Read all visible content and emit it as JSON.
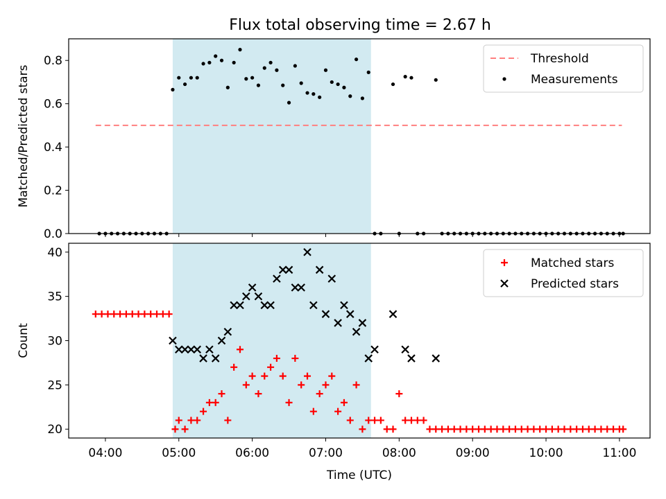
{
  "title": "Flux total observing time = 2.67 h",
  "colors": {
    "highlight": "#add8e6",
    "threshold": "#ff7f7f",
    "measurement": "#000000",
    "matched": "#ff0000",
    "predicted": "#000000"
  },
  "chart_data": [
    {
      "type": "scatter",
      "xlabel": "",
      "ylabel": "Matched/Predicted stars",
      "xlim": [
        "03:30",
        "11:25"
      ],
      "ylim": [
        0,
        0.9
      ],
      "yticks": [
        "0.0",
        "0.2",
        "0.4",
        "0.6",
        "0.8"
      ],
      "ytick_values": [
        0,
        0.2,
        0.4,
        0.6,
        0.8
      ],
      "xticks": [
        "04:00",
        "05:00",
        "06:00",
        "07:00",
        "08:00",
        "09:00",
        "10:00",
        "11:00"
      ],
      "highlight_span": [
        "04:55",
        "07:37"
      ],
      "legend_position": "top-right",
      "series": [
        {
          "name": "Threshold",
          "style": "dashed-line",
          "x": [
            "03:52",
            "11:02"
          ],
          "y": [
            0.5,
            0.5
          ]
        },
        {
          "name": "Measurements",
          "style": "dot",
          "x": [
            "03:55",
            "04:00",
            "04:05",
            "04:10",
            "04:15",
            "04:20",
            "04:25",
            "04:30",
            "04:35",
            "04:40",
            "04:45",
            "04:50",
            "04:55",
            "05:00",
            "05:05",
            "05:10",
            "05:15",
            "05:20",
            "05:25",
            "05:30",
            "05:35",
            "05:40",
            "05:45",
            "05:50",
            "05:55",
            "06:00",
            "06:05",
            "06:10",
            "06:15",
            "06:20",
            "06:25",
            "06:30",
            "06:35",
            "06:40",
            "06:45",
            "06:50",
            "06:55",
            "07:00",
            "07:05",
            "07:10",
            "07:15",
            "07:20",
            "07:25",
            "07:30",
            "07:35",
            "07:40",
            "07:45",
            "07:55",
            "08:00",
            "08:05",
            "08:10",
            "08:15",
            "08:20",
            "08:30",
            "08:35",
            "08:40",
            "08:45",
            "08:50",
            "08:55",
            "09:00",
            "09:05",
            "09:10",
            "09:15",
            "09:20",
            "09:25",
            "09:30",
            "09:35",
            "09:40",
            "09:45",
            "09:50",
            "09:55",
            "10:00",
            "10:05",
            "10:10",
            "10:15",
            "10:20",
            "10:25",
            "10:30",
            "10:35",
            "10:40",
            "10:45",
            "10:50",
            "10:55",
            "11:00",
            "11:03"
          ],
          "y": [
            0,
            0,
            0,
            0,
            0,
            0,
            0,
            0,
            0,
            0,
            0,
            0,
            0.665,
            0.72,
            0.69,
            0.72,
            0.72,
            0.785,
            0.79,
            0.82,
            0.8,
            0.675,
            0.79,
            0.85,
            0.715,
            0.72,
            0.685,
            0.765,
            0.79,
            0.755,
            0.685,
            0.605,
            0.775,
            0.695,
            0.65,
            0.645,
            0.63,
            0.755,
            0.7,
            0.69,
            0.675,
            0.635,
            0.805,
            0.625,
            0.745,
            0,
            0,
            0.69,
            0,
            0.725,
            0.72,
            0,
            0,
            0.71,
            0,
            0,
            0,
            0,
            0,
            0,
            0,
            0,
            0,
            0,
            0,
            0,
            0,
            0,
            0,
            0,
            0,
            0,
            0,
            0,
            0,
            0,
            0,
            0,
            0,
            0,
            0,
            0,
            0,
            0,
            0
          ]
        }
      ]
    },
    {
      "type": "scatter",
      "xlabel": "Time (UTC)",
      "ylabel": "Count",
      "xlim": [
        "03:30",
        "11:25"
      ],
      "ylim": [
        19,
        41
      ],
      "yticks": [
        "20",
        "25",
        "30",
        "35",
        "40"
      ],
      "ytick_values": [
        20,
        25,
        30,
        35,
        40
      ],
      "xticks": [
        "04:00",
        "05:00",
        "06:00",
        "07:00",
        "08:00",
        "09:00",
        "10:00",
        "11:00"
      ],
      "highlight_span": [
        "04:55",
        "07:37"
      ],
      "legend_position": "top-right",
      "series": [
        {
          "name": "Matched stars",
          "style": "plus",
          "x": [
            "03:52",
            "03:57",
            "04:02",
            "04:07",
            "04:12",
            "04:17",
            "04:22",
            "04:27",
            "04:32",
            "04:37",
            "04:42",
            "04:47",
            "04:52",
            "04:57",
            "05:00",
            "05:05",
            "05:10",
            "05:15",
            "05:20",
            "05:25",
            "05:30",
            "05:35",
            "05:40",
            "05:45",
            "05:50",
            "05:55",
            "06:00",
            "06:05",
            "06:10",
            "06:15",
            "06:20",
            "06:25",
            "06:30",
            "06:35",
            "06:40",
            "06:45",
            "06:50",
            "06:55",
            "07:00",
            "07:05",
            "07:10",
            "07:15",
            "07:20",
            "07:25",
            "07:30",
            "07:35",
            "07:40",
            "07:45",
            "07:50",
            "07:55",
            "08:00",
            "08:05",
            "08:10",
            "08:15",
            "08:20",
            "08:25",
            "08:30",
            "08:35",
            "08:40",
            "08:45",
            "08:50",
            "08:55",
            "09:00",
            "09:05",
            "09:10",
            "09:15",
            "09:20",
            "09:25",
            "09:30",
            "09:35",
            "09:40",
            "09:45",
            "09:50",
            "09:55",
            "10:00",
            "10:05",
            "10:10",
            "10:15",
            "10:20",
            "10:25",
            "10:30",
            "10:35",
            "10:40",
            "10:45",
            "10:50",
            "10:55",
            "11:00",
            "11:03"
          ],
          "y": [
            33,
            33,
            33,
            33,
            33,
            33,
            33,
            33,
            33,
            33,
            33,
            33,
            33,
            20,
            21,
            20,
            21,
            21,
            22,
            23,
            23,
            24,
            21,
            27,
            29,
            25,
            26,
            24,
            26,
            27,
            28,
            26,
            23,
            28,
            25,
            26,
            22,
            24,
            25,
            26,
            22,
            23,
            21,
            25,
            20,
            21,
            21,
            21,
            20,
            20,
            24,
            21,
            21,
            21,
            21,
            20,
            20,
            20,
            20,
            20,
            20,
            20,
            20,
            20,
            20,
            20,
            20,
            20,
            20,
            20,
            20,
            20,
            20,
            20,
            20,
            20,
            20,
            20,
            20,
            20,
            20,
            20,
            20,
            20,
            20,
            20,
            20,
            20
          ]
        },
        {
          "name": "Predicted stars",
          "style": "x",
          "x": [
            "04:55",
            "05:00",
            "05:05",
            "05:10",
            "05:15",
            "05:20",
            "05:25",
            "05:30",
            "05:35",
            "05:40",
            "05:45",
            "05:50",
            "05:55",
            "06:00",
            "06:05",
            "06:10",
            "06:15",
            "06:20",
            "06:25",
            "06:30",
            "06:35",
            "06:40",
            "06:45",
            "06:50",
            "06:55",
            "07:00",
            "07:05",
            "07:10",
            "07:15",
            "07:20",
            "07:25",
            "07:30",
            "07:35",
            "07:40",
            "07:55",
            "08:05",
            "08:10",
            "08:30"
          ],
          "y": [
            30,
            29,
            29,
            29,
            29,
            28,
            29,
            28,
            30,
            31,
            34,
            34,
            35,
            36,
            35,
            34,
            34,
            37,
            38,
            38,
            36,
            36,
            40,
            34,
            38,
            33,
            37,
            32,
            34,
            33,
            31,
            32,
            28,
            29,
            33,
            29,
            28,
            28
          ]
        }
      ]
    }
  ]
}
